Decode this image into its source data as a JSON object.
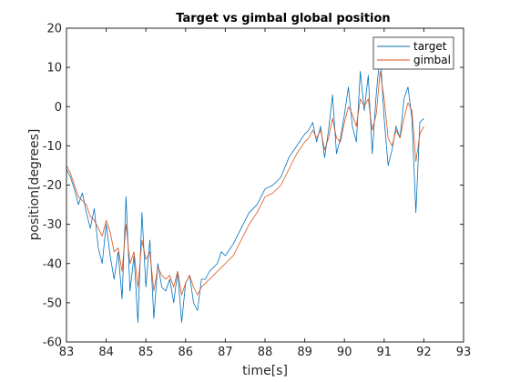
{
  "chart_data": {
    "type": "line",
    "title": "Target vs gimbal global position",
    "xlabel": "time[s]",
    "ylabel": "position[degrees]",
    "xlim": [
      83,
      93
    ],
    "ylim": [
      -60,
      20
    ],
    "xticks": [
      83,
      84,
      85,
      86,
      87,
      88,
      89,
      90,
      91,
      92,
      93
    ],
    "yticks": [
      -60,
      -50,
      -40,
      -30,
      -20,
      -10,
      0,
      10,
      20
    ],
    "grid": false,
    "legend_position": "top-right",
    "series": [
      {
        "name": "target",
        "color": "#0072BD",
        "x": [
          83.0,
          83.1,
          83.2,
          83.3,
          83.4,
          83.5,
          83.6,
          83.7,
          83.8,
          83.9,
          84.0,
          84.1,
          84.2,
          84.3,
          84.4,
          84.5,
          84.6,
          84.7,
          84.8,
          84.9,
          85.0,
          85.1,
          85.2,
          85.3,
          85.4,
          85.5,
          85.6,
          85.7,
          85.8,
          85.9,
          86.0,
          86.1,
          86.2,
          86.3,
          86.4,
          86.5,
          86.6,
          86.7,
          86.8,
          86.9,
          87.0,
          87.2,
          87.4,
          87.6,
          87.8,
          88.0,
          88.2,
          88.4,
          88.6,
          88.8,
          89.0,
          89.1,
          89.2,
          89.3,
          89.4,
          89.5,
          89.6,
          89.7,
          89.8,
          89.9,
          90.0,
          90.1,
          90.2,
          90.3,
          90.4,
          90.5,
          90.6,
          90.7,
          90.8,
          90.9,
          91.0,
          91.1,
          91.2,
          91.3,
          91.4,
          91.5,
          91.6,
          91.7,
          91.8,
          91.9,
          92.0
        ],
        "y": [
          -16,
          -18,
          -21,
          -25,
          -22,
          -27,
          -31,
          -26,
          -36,
          -40,
          -30,
          -38,
          -44,
          -37,
          -49,
          -23,
          -47,
          -38,
          -55,
          -27,
          -46,
          -34,
          -54,
          -40,
          -46,
          -47,
          -44,
          -50,
          -42,
          -55,
          -45,
          -43,
          -50,
          -52,
          -44,
          -44,
          -42,
          -41,
          -40,
          -37,
          -38,
          -35,
          -31,
          -27,
          -25,
          -21,
          -20,
          -18,
          -13,
          -10,
          -7,
          -6,
          -4,
          -9,
          -5,
          -13,
          -6,
          3,
          -12,
          -8,
          -2,
          5,
          -5,
          -9,
          9,
          -1,
          8,
          -12,
          3,
          14,
          -3,
          -15,
          -11,
          -5,
          -8,
          2,
          5,
          -3,
          -27,
          -4,
          -3
        ]
      },
      {
        "name": "gimbal",
        "color": "#D95319",
        "x": [
          83.0,
          83.1,
          83.2,
          83.3,
          83.4,
          83.5,
          83.6,
          83.7,
          83.8,
          83.9,
          84.0,
          84.1,
          84.2,
          84.3,
          84.4,
          84.5,
          84.6,
          84.7,
          84.8,
          84.9,
          85.0,
          85.1,
          85.2,
          85.3,
          85.4,
          85.5,
          85.6,
          85.7,
          85.8,
          85.9,
          86.0,
          86.1,
          86.2,
          86.3,
          86.4,
          86.5,
          86.6,
          86.7,
          86.8,
          86.9,
          87.0,
          87.2,
          87.4,
          87.6,
          87.8,
          88.0,
          88.2,
          88.4,
          88.6,
          88.8,
          89.0,
          89.1,
          89.2,
          89.3,
          89.4,
          89.5,
          89.6,
          89.7,
          89.8,
          89.9,
          90.0,
          90.1,
          90.2,
          90.3,
          90.4,
          90.5,
          90.6,
          90.7,
          90.8,
          90.9,
          91.0,
          91.1,
          91.2,
          91.3,
          91.4,
          91.5,
          91.6,
          91.7,
          91.8,
          91.9,
          92.0
        ],
        "y": [
          -15,
          -17,
          -20,
          -23,
          -24,
          -25,
          -28,
          -29,
          -31,
          -33,
          -29,
          -32,
          -37,
          -36,
          -42,
          -30,
          -40,
          -37,
          -46,
          -34,
          -39,
          -37,
          -47,
          -41,
          -43,
          -44,
          -43,
          -46,
          -42,
          -48,
          -45,
          -43,
          -46,
          -48,
          -46,
          -45,
          -44,
          -43,
          -42,
          -41,
          -40,
          -38,
          -34,
          -30,
          -27,
          -23,
          -22,
          -20,
          -16,
          -12,
          -9,
          -8,
          -6,
          -8,
          -6,
          -11,
          -8,
          -3,
          -8,
          -9,
          -4,
          0,
          -2,
          -5,
          2,
          0,
          2,
          -6,
          -2,
          9,
          2,
          -8,
          -10,
          -6,
          -8,
          -3,
          1,
          -1,
          -14,
          -7,
          -5
        ]
      }
    ]
  }
}
